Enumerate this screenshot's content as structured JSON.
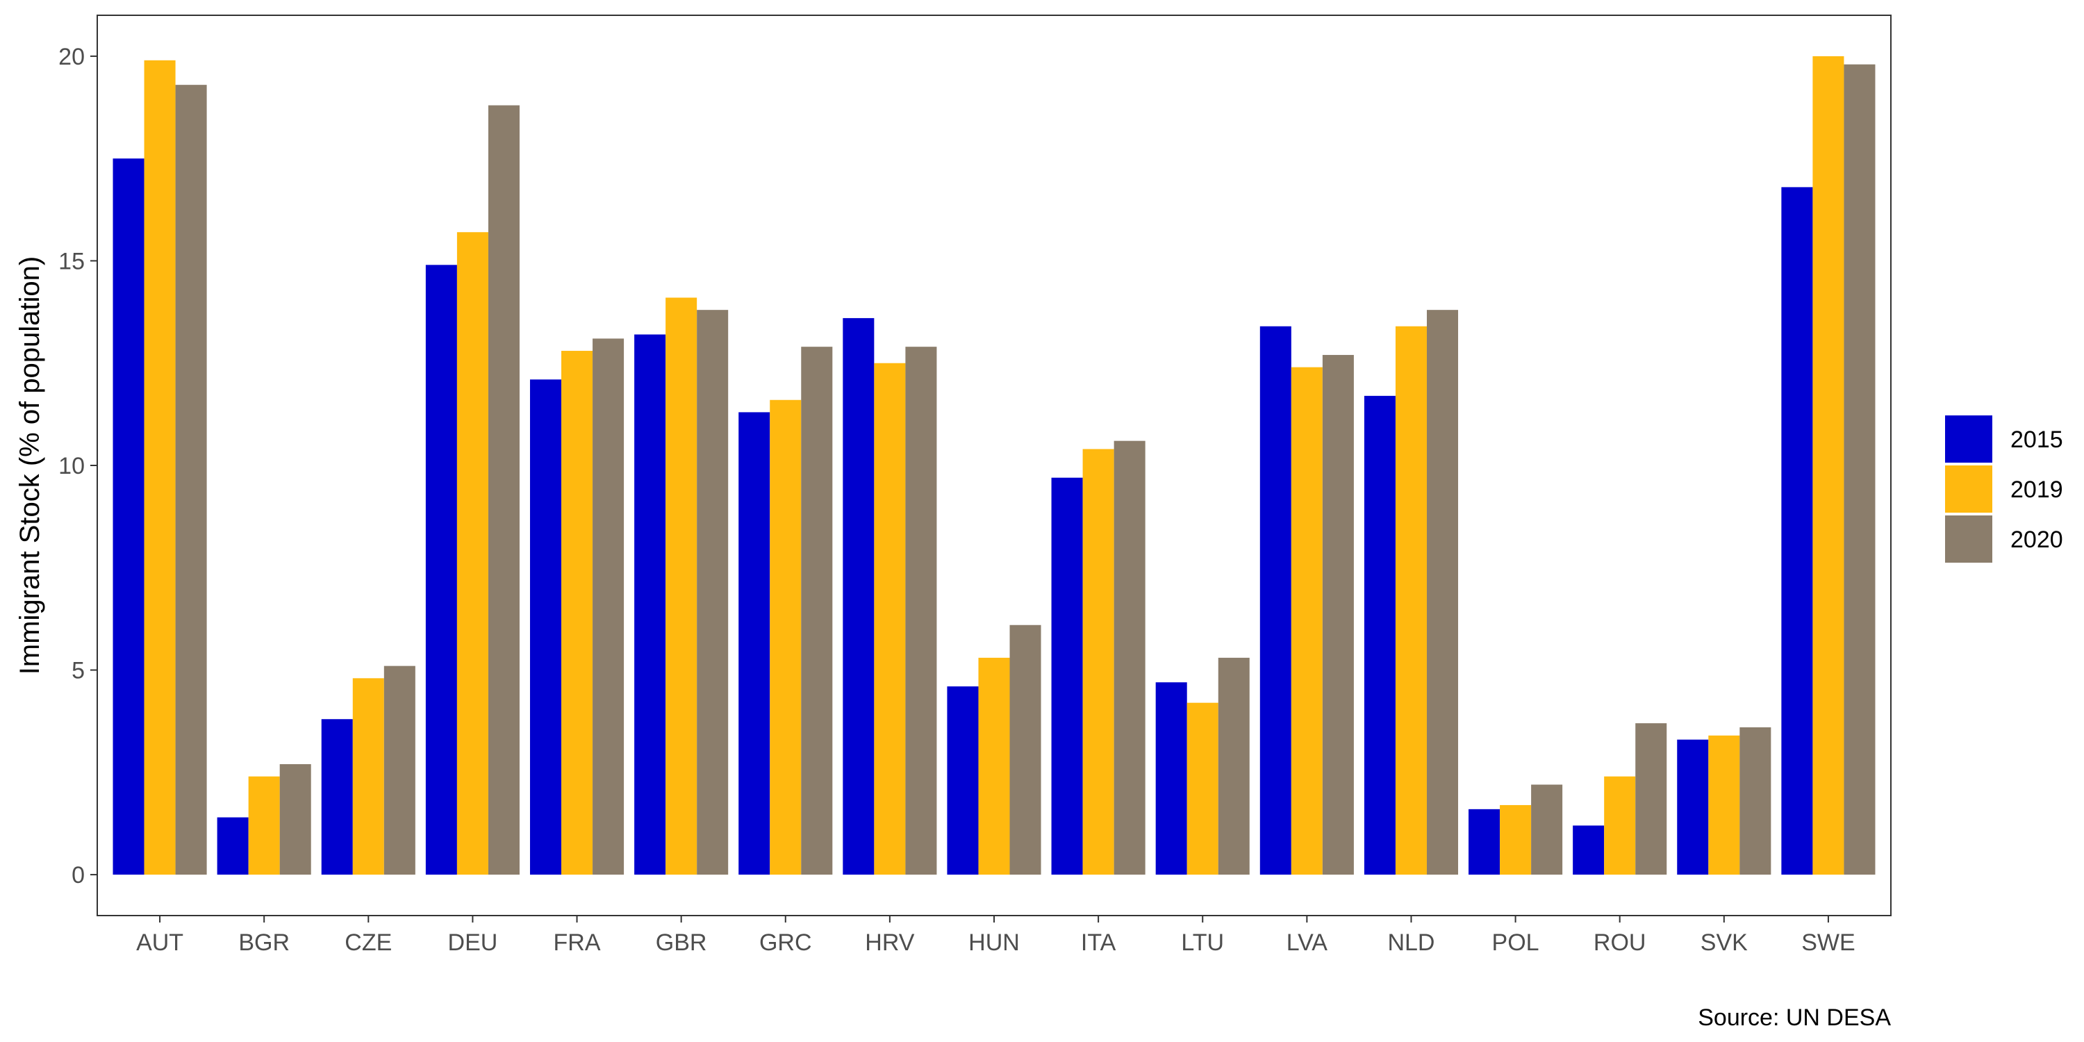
{
  "chart_data": {
    "type": "bar",
    "title": "",
    "xlabel": "",
    "ylabel": "Immigrant Stock (% of population)",
    "caption": "Source: UN DESA",
    "categories": [
      "AUT",
      "BGR",
      "CZE",
      "DEU",
      "FRA",
      "GBR",
      "GRC",
      "HRV",
      "HUN",
      "ITA",
      "LTU",
      "LVA",
      "NLD",
      "POL",
      "ROU",
      "SVK",
      "SWE"
    ],
    "series": [
      {
        "name": "2015",
        "color": "#0000cd",
        "values": [
          17.5,
          1.4,
          3.8,
          14.9,
          12.1,
          13.2,
          11.3,
          13.6,
          4.6,
          9.7,
          4.7,
          13.4,
          11.7,
          1.6,
          1.2,
          3.3,
          16.8
        ]
      },
      {
        "name": "2019",
        "color": "#ffb90f",
        "values": [
          19.9,
          2.4,
          4.8,
          15.7,
          12.8,
          14.1,
          11.6,
          12.5,
          5.3,
          10.4,
          4.2,
          12.4,
          13.4,
          1.7,
          2.4,
          3.4,
          20.0
        ]
      },
      {
        "name": "2020",
        "color": "#8b7d6b",
        "values": [
          19.3,
          2.7,
          5.1,
          18.8,
          13.1,
          13.8,
          12.9,
          12.9,
          6.1,
          10.6,
          5.3,
          12.7,
          13.8,
          2.2,
          3.7,
          3.6,
          19.8
        ]
      }
    ],
    "yticks": [
      0,
      5,
      10,
      15,
      20
    ],
    "ylim": [
      -1,
      21
    ],
    "grid": false,
    "legend_position": "right"
  }
}
